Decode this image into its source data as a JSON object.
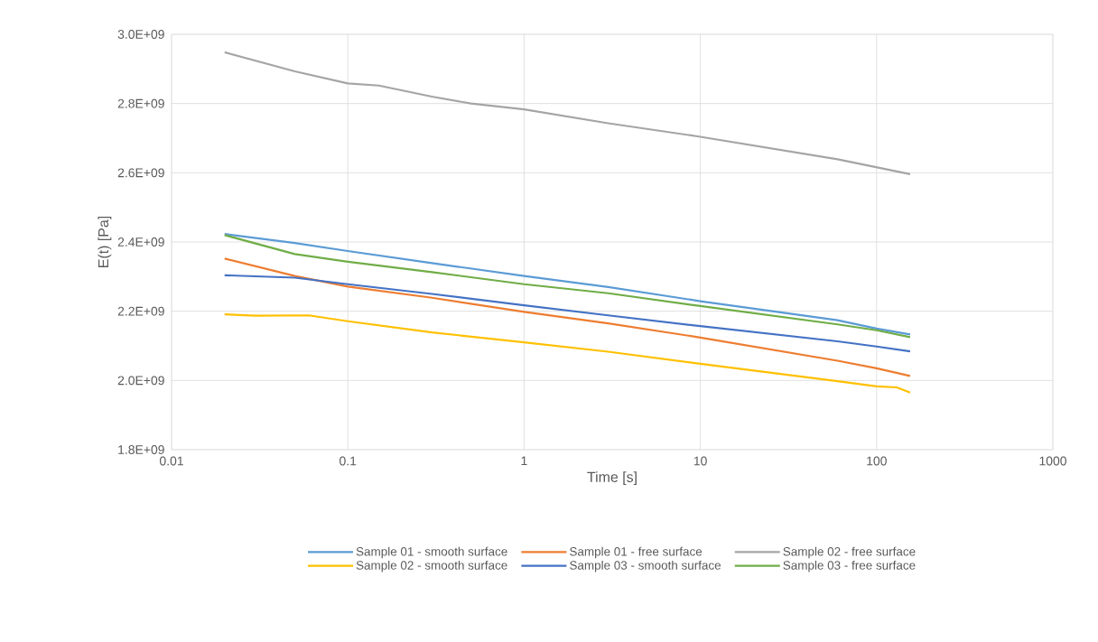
{
  "chart_data": {
    "type": "line",
    "xlabel": "Time [s]",
    "ylabel": "E(t) [Pa]",
    "log": "x",
    "grid": true,
    "legend": "bottom",
    "marker": "none",
    "line_style": "solid",
    "xlim": [
      0.01,
      1000
    ],
    "xticks": [
      0.01,
      0.1,
      1,
      10,
      100,
      1000
    ],
    "ylim": [
      1800000000,
      3000000000
    ],
    "yticks": [
      {
        "value": 1800000000,
        "label": "1.8E+09"
      },
      {
        "value": 2000000000,
        "label": "2.0E+09"
      },
      {
        "value": 2200000000,
        "label": "2.2E+09"
      },
      {
        "value": 2400000000,
        "label": "2.4E+09"
      },
      {
        "value": 2600000000,
        "label": "2.6E+09"
      },
      {
        "value": 2800000000,
        "label": "2.8E+09"
      },
      {
        "value": 3000000000,
        "label": "3.0E+09"
      }
    ],
    "x": [
      0.02,
      0.05,
      0.1,
      0.3,
      1,
      3,
      10,
      60,
      100,
      155
    ],
    "series": [
      {
        "name": "Sample 01 - smooth surface",
        "color": "#5b9bd5",
        "values": [
          2423000000,
          2397000000,
          2374000000,
          2339000000,
          2302000000,
          2270000000,
          2229000000,
          2174000000,
          2150000000,
          2133000000
        ]
      },
      {
        "name": "Sample 01 - free surface",
        "color": "#ed7d31",
        "values": [
          2352000000,
          2302000000,
          2271000000,
          2239000000,
          2198000000,
          2165000000,
          2124000000,
          2057000000,
          2035000000,
          2013000000
        ]
      },
      {
        "name": "Sample 02 - free surface",
        "color": "#a5a5a5",
        "x": [
          0.02,
          0.05,
          0.1,
          0.15,
          0.3,
          0.5,
          1,
          3,
          10,
          60,
          155
        ],
        "values": [
          2948000000,
          2893000000,
          2858000000,
          2852000000,
          2820000000,
          2800000000,
          2783000000,
          2743000000,
          2704000000,
          2639000000,
          2596000000
        ]
      },
      {
        "name": "Sample 02 - smooth surface",
        "color": "#ffc000",
        "x": [
          0.02,
          0.03,
          0.06,
          0.1,
          0.3,
          1,
          3,
          10,
          60,
          100,
          130,
          155
        ],
        "values": [
          2191000000,
          2187000000,
          2188000000,
          2171000000,
          2139000000,
          2110000000,
          2083000000,
          2048000000,
          1998000000,
          1983000000,
          1980000000,
          1965000000
        ]
      },
      {
        "name": "Sample 03 - smooth surface",
        "color": "#4472c4",
        "values": [
          2304000000,
          2297000000,
          2278000000,
          2250000000,
          2217000000,
          2188000000,
          2157000000,
          2113000000,
          2098000000,
          2084000000
        ]
      },
      {
        "name": "Sample 03 - free surface",
        "color": "#70ad47",
        "values": [
          2420000000,
          2365000000,
          2343000000,
          2313000000,
          2278000000,
          2252000000,
          2215000000,
          2162000000,
          2145000000,
          2125000000
        ]
      }
    ]
  }
}
